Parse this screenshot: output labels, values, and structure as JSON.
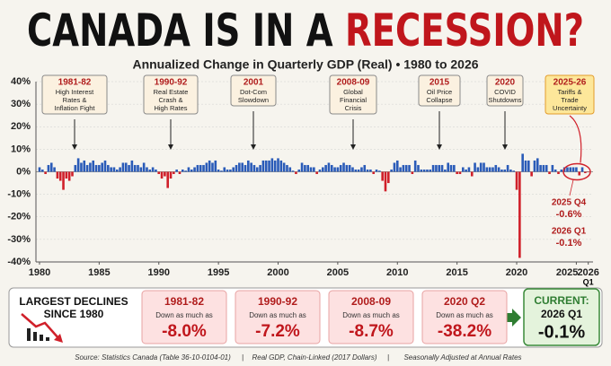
{
  "chart_data": {
    "type": "bar",
    "title_parts": [
      "CANADA IS IN A ",
      "RECESSION?"
    ],
    "subtitle": "Annualized Change in Quarterly GDP (Real)  •  1980 to 2026",
    "x": [
      1980,
      1980.25,
      1980.5,
      1980.75,
      1981,
      1981.25,
      1981.5,
      1981.75,
      1982,
      1982.25,
      1982.5,
      1982.75,
      1983,
      1983.25,
      1983.5,
      1983.75,
      1984,
      1984.25,
      1984.5,
      1984.75,
      1985,
      1985.25,
      1985.5,
      1985.75,
      1986,
      1986.25,
      1986.5,
      1986.75,
      1987,
      1987.25,
      1987.5,
      1987.75,
      1988,
      1988.25,
      1988.5,
      1988.75,
      1989,
      1989.25,
      1989.5,
      1989.75,
      1990,
      1990.25,
      1990.5,
      1990.75,
      1991,
      1991.25,
      1991.5,
      1991.75,
      1992,
      1992.25,
      1992.5,
      1992.75,
      1993,
      1993.25,
      1993.5,
      1993.75,
      1994,
      1994.25,
      1994.5,
      1994.75,
      1995,
      1995.25,
      1995.5,
      1995.75,
      1996,
      1996.25,
      1996.5,
      1996.75,
      1997,
      1997.25,
      1997.5,
      1997.75,
      1998,
      1998.25,
      1998.5,
      1998.75,
      1999,
      1999.25,
      1999.5,
      1999.75,
      2000,
      2000.25,
      2000.5,
      2000.75,
      2001,
      2001.25,
      2001.5,
      2001.75,
      2002,
      2002.25,
      2002.5,
      2002.75,
      2003,
      2003.25,
      2003.5,
      2003.75,
      2004,
      2004.25,
      2004.5,
      2004.75,
      2005,
      2005.25,
      2005.5,
      2005.75,
      2006,
      2006.25,
      2006.5,
      2006.75,
      2007,
      2007.25,
      2007.5,
      2007.75,
      2008,
      2008.25,
      2008.5,
      2008.75,
      2009,
      2009.25,
      2009.5,
      2009.75,
      2010,
      2010.25,
      2010.5,
      2010.75,
      2011,
      2011.25,
      2011.5,
      2011.75,
      2012,
      2012.25,
      2012.5,
      2012.75,
      2013,
      2013.25,
      2013.5,
      2013.75,
      2014,
      2014.25,
      2014.5,
      2014.75,
      2015,
      2015.25,
      2015.5,
      2015.75,
      2016,
      2016.25,
      2016.5,
      2016.75,
      2017,
      2017.25,
      2017.5,
      2017.75,
      2018,
      2018.25,
      2018.5,
      2018.75,
      2019,
      2019.25,
      2019.5,
      2019.75,
      2020,
      2020.25,
      2020.5,
      2020.75,
      2021,
      2021.25,
      2021.5,
      2021.75,
      2022,
      2022.25,
      2022.5,
      2022.75,
      2023,
      2023.25,
      2023.5,
      2023.75,
      2024,
      2024.25,
      2024.5,
      2024.75,
      2025,
      2025.25,
      2025.5,
      2025.75,
      2026
    ],
    "values": [
      2,
      1,
      -1,
      3,
      4,
      2,
      -3,
      -4,
      -8,
      -3,
      -4,
      -2,
      3,
      6,
      4,
      5,
      3,
      4,
      5,
      3,
      3,
      4,
      5,
      3,
      2,
      2,
      1,
      2,
      4,
      4,
      3,
      5,
      3,
      3,
      2,
      4,
      2,
      1,
      2,
      1,
      -1,
      -3,
      -2,
      -7.2,
      -3,
      -1,
      1,
      -1,
      1,
      0.5,
      2,
      1,
      2,
      3,
      3,
      3,
      4,
      5,
      4,
      5,
      1,
      0.5,
      2,
      1,
      1,
      2,
      3,
      4,
      4,
      3,
      5,
      4,
      3,
      2,
      3,
      5,
      5,
      5,
      6,
      5,
      6,
      5,
      4,
      3,
      2,
      0.5,
      -1,
      1,
      4,
      3,
      3,
      2,
      2,
      -1,
      1,
      2,
      3,
      4,
      3,
      2,
      2,
      3,
      4,
      3,
      3,
      2,
      1,
      1,
      2,
      3,
      1,
      1,
      -1,
      1,
      0.5,
      -4,
      -8.7,
      -5,
      1,
      4,
      5,
      2,
      3,
      3,
      3,
      -1,
      5,
      3,
      1,
      1,
      1,
      1,
      3,
      3,
      3,
      3,
      1,
      4,
      3,
      3,
      -1,
      -1,
      2,
      1,
      2,
      -2,
      4,
      2,
      4,
      4,
      2,
      2,
      2,
      3,
      2,
      1,
      1,
      3,
      1,
      0.5,
      -8,
      -38.2,
      8,
      5,
      5,
      -2,
      5,
      6,
      3,
      3,
      3,
      -1,
      3,
      1,
      -1,
      1,
      2,
      2,
      2,
      2,
      2,
      -1.6,
      2,
      -0.6,
      -0.1
    ],
    "positive_color": "#2a5bb8",
    "negative_color": "#d0202a",
    "xlim": [
      1979.7,
      2026.4
    ],
    "xticks": [
      1980,
      1985,
      1990,
      1995,
      2000,
      2005,
      2010,
      2015,
      2020,
      2025,
      2026
    ],
    "xtick_sublabel": "Q1",
    "ylim": [
      -40,
      40
    ],
    "yticks": [
      {
        "value": 40,
        "label": "40%"
      },
      {
        "value": 30,
        "label": "30%"
      },
      {
        "value": 20,
        "label": "20%"
      },
      {
        "value": 10,
        "label": "10%"
      },
      {
        "value": 0,
        "label": "0%"
      },
      {
        "value": -10,
        "label": "-10%"
      },
      {
        "value": -20,
        "label": "-20%"
      },
      {
        "value": -30,
        "label": "-30%"
      },
      {
        "value": -40,
        "label": "-40%"
      }
    ],
    "grid": true,
    "callouts": [
      {
        "title": "1981-82",
        "lines": [
          "High Interest",
          "Rates &",
          "Inflation Fight"
        ]
      },
      {
        "title": "1990-92",
        "lines": [
          "Real Estate",
          "Crash &",
          "High Rates"
        ]
      },
      {
        "title": "2001",
        "lines": [
          "Dot-Com",
          "Slowdown"
        ]
      },
      {
        "title": "2008-09",
        "lines": [
          "Global",
          "Financial",
          "Crisis"
        ]
      },
      {
        "title": "2015",
        "lines": [
          "Oil Price",
          "Collapse"
        ]
      },
      {
        "title": "2020",
        "lines": [
          "COVID",
          "Shutdowns"
        ]
      },
      {
        "title": "2025-26",
        "lines": [
          "Tariffs &",
          "Trade",
          "Uncertainty"
        ]
      }
    ],
    "highlights": [
      {
        "label": "2025 Q4",
        "value": -0.6,
        "value_label": "-0.6%"
      },
      {
        "label": "2026 Q1",
        "value": -0.1,
        "value_label": "-0.1%"
      }
    ]
  },
  "panel": {
    "heading": [
      "LARGEST DECLINES",
      "SINCE 1980"
    ],
    "cards": [
      {
        "period": "1981-82",
        "note": "Down as much as",
        "value": "-8.0%"
      },
      {
        "period": "1990-92",
        "note": "Down as much as",
        "value": "-7.2%"
      },
      {
        "period": "2008-09",
        "note": "Down as much as",
        "value": "-8.7%"
      },
      {
        "period": "2020 Q2",
        "note": "Down as much as",
        "value": "-38.2%"
      }
    ],
    "current": {
      "heading": "CURRENT:",
      "period": "2026 Q1",
      "value": "-0.1%"
    }
  },
  "source": {
    "parts": [
      "Source: Statistics Canada (Table 36-10-0104-01)",
      "Real GDP, Chain-Linked (2017 Dollars)",
      "Seasonally Adjusted at Annual Rates"
    ],
    "separator": "|"
  }
}
